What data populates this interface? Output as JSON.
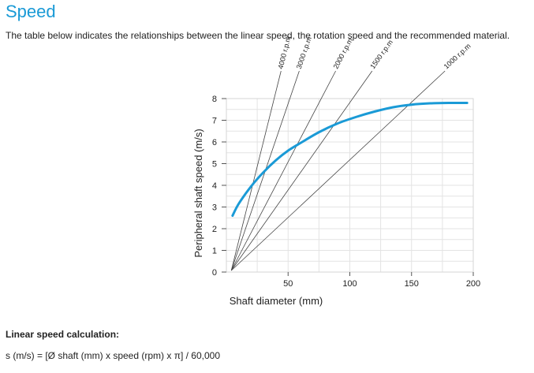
{
  "page": {
    "title": "Speed",
    "intro": "The table below indicates the relationships between the linear speed, the rotation speed and the recommended material.",
    "calc_title": "Linear speed calculation:",
    "calc_formula": "s (m/s) = [Ø shaft (mm) x speed (rpm) x π] / 60,000"
  },
  "chart_data": {
    "type": "line",
    "xlabel": "Shaft diameter (mm)",
    "ylabel": "Peripheral shaft speed (m/s)",
    "xlim": [
      0,
      200
    ],
    "ylim": [
      0,
      8
    ],
    "xticks": [
      50,
      100,
      150,
      200
    ],
    "yticks": [
      0,
      1,
      2,
      3,
      4,
      5,
      6,
      7,
      8
    ],
    "grid": true,
    "rpm_lines": [
      {
        "label": "4000 r.p.m",
        "rpm": 4000
      },
      {
        "label": "3000 r.p.m",
        "rpm": 3000
      },
      {
        "label": "2000 r.p.m",
        "rpm": 2000
      },
      {
        "label": "1500 r.p.m",
        "rpm": 1500
      },
      {
        "label": "1000 r.p.m",
        "rpm": 1000
      }
    ],
    "curve": {
      "color": "#1a9ad6",
      "x": [
        5,
        10,
        20,
        30,
        40,
        50,
        60,
        75,
        90,
        105,
        120,
        135,
        150,
        165,
        180,
        195
      ],
      "y": [
        2.6,
        3.15,
        3.95,
        4.6,
        5.15,
        5.6,
        5.95,
        6.45,
        6.85,
        7.15,
        7.4,
        7.6,
        7.72,
        7.78,
        7.8,
        7.8
      ]
    }
  }
}
